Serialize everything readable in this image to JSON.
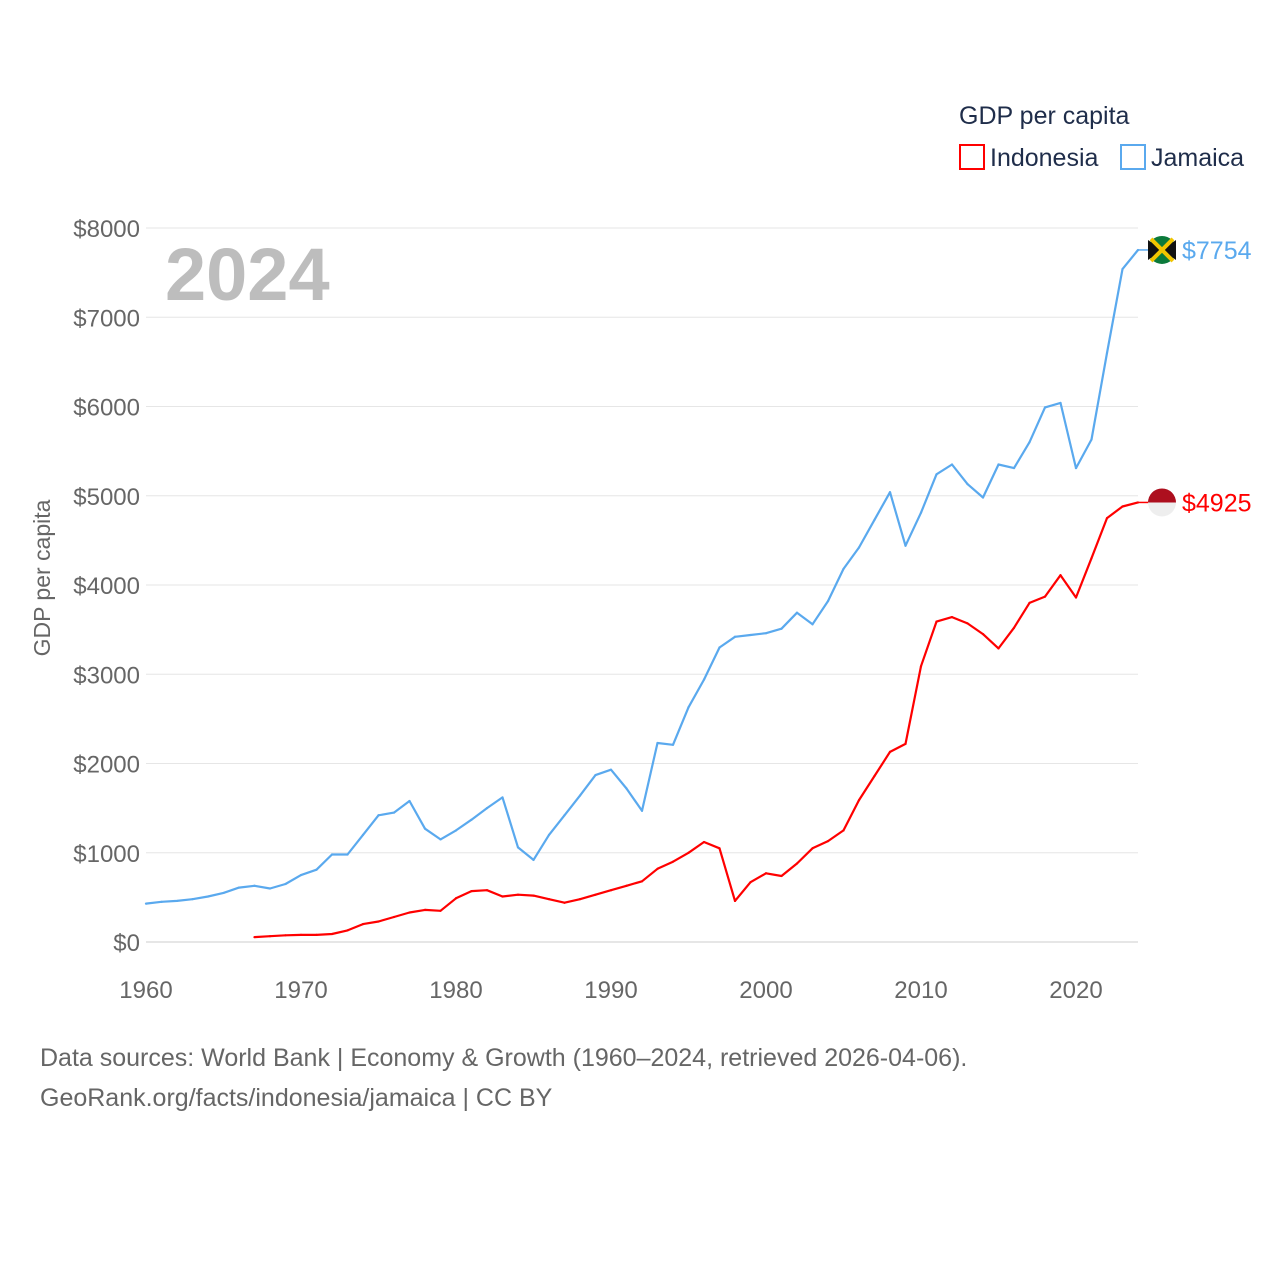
{
  "chart_data": {
    "type": "line",
    "title": "GDP per capita",
    "year_label": "2024",
    "ylabel": "GDP per capita",
    "xlabel": "",
    "xlim": [
      1960,
      2024
    ],
    "ylim": [
      0,
      8000
    ],
    "grid": true,
    "legend_placement": "top-right",
    "x_ticks": [
      "1960",
      "1970",
      "1980",
      "1990",
      "2000",
      "2010",
      "2020"
    ],
    "y_ticks": [
      "$0",
      "$1000",
      "$2000",
      "$3000",
      "$4000",
      "$5000",
      "$6000",
      "$7000",
      "$8000"
    ],
    "series": [
      {
        "name": "Indonesia",
        "color": "#ff0000",
        "start_year": 1967,
        "end_label": "$4925",
        "values": [
          55,
          65,
          75,
          80,
          80,
          90,
          130,
          200,
          230,
          280,
          330,
          360,
          350,
          490,
          570,
          580,
          510,
          530,
          520,
          480,
          440,
          480,
          530,
          580,
          630,
          680,
          820,
          900,
          1000,
          1120,
          1050,
          460,
          670,
          770,
          740,
          880,
          1050,
          1130,
          1250,
          1590,
          1860,
          2130,
          2220,
          3090,
          3590,
          3640,
          3570,
          3450,
          3290,
          3520,
          3800,
          3870,
          4110,
          3860,
          4300,
          4750,
          4880,
          4925
        ]
      },
      {
        "name": "Jamaica",
        "color": "#5aa9ee",
        "start_year": 1960,
        "end_label": "$7754",
        "values": [
          430,
          450,
          460,
          480,
          510,
          550,
          610,
          630,
          600,
          650,
          750,
          810,
          980,
          980,
          1200,
          1420,
          1450,
          1580,
          1270,
          1150,
          1250,
          1370,
          1500,
          1620,
          1060,
          920,
          1200,
          1420,
          1640,
          1870,
          1930,
          1720,
          1470,
          2230,
          2210,
          2630,
          2940,
          3300,
          3420,
          3440,
          3460,
          3510,
          3690,
          3560,
          3820,
          4180,
          4420,
          4730,
          5040,
          4440,
          4810,
          5240,
          5350,
          5130,
          4980,
          5350,
          5310,
          5600,
          5990,
          6040,
          5310,
          5630,
          6600,
          7540,
          7754
        ]
      }
    ]
  },
  "footer": {
    "line1": "Data sources: World Bank | Economy & Growth (1960–2024, retrieved 2026-04-06).",
    "line2": "GeoRank.org/facts/indonesia/jamaica | CC BY"
  }
}
